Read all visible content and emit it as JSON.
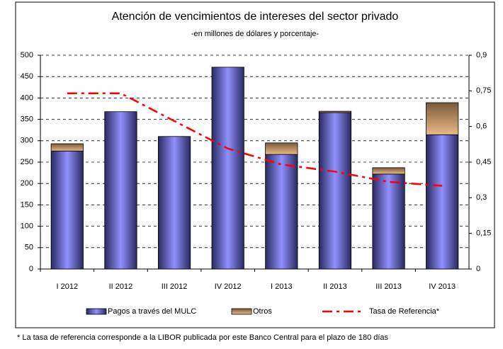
{
  "chart_data": {
    "type": "bar",
    "title": "Atención de vencimientos de intereses del sector privado",
    "subtitle": "-en millones de dólares y porcentaje-",
    "categories": [
      "I 2012",
      "II 2012",
      "III 2012",
      "IV 2012",
      "I 2013",
      "II 2013",
      "III 2013",
      "IV 2013"
    ],
    "series": [
      {
        "name": "Pagos a través del MULC",
        "color": "#9090ff",
        "values": [
          276,
          368,
          310,
          472,
          268,
          366,
          222,
          314
        ]
      },
      {
        "name": "Otros",
        "color": "#e8b888",
        "values": [
          17,
          0,
          0,
          0,
          27,
          3,
          15,
          75
        ]
      },
      {
        "name": "Tasa de Referencia*",
        "color": "#ff0000",
        "type": "line",
        "axis": "y2",
        "values": [
          0.74,
          0.74,
          0.623,
          0.507,
          0.44,
          0.41,
          0.367,
          0.35
        ]
      }
    ],
    "stacked": true,
    "ylim": [
      0,
      500
    ],
    "yticks": [
      0,
      50,
      100,
      150,
      200,
      250,
      300,
      350,
      400,
      450,
      500
    ],
    "y2lim": [
      0,
      0.9
    ],
    "y2ticks": [
      0,
      {
        "value": 0.15,
        "label": "0,15"
      },
      {
        "value": 0.3,
        "label": "0,3"
      },
      {
        "value": 0.45,
        "label": "0,45"
      },
      {
        "value": 0.6,
        "label": "0,6"
      },
      {
        "value": 0.75,
        "label": "0,75"
      },
      {
        "value": 0.9,
        "label": "0,9"
      }
    ],
    "grid": true,
    "legend": "bottom",
    "footnote": "* La tasa de referencia corresponde a la LIBOR publicada por este Banco Central para el plazo de 180 días"
  }
}
